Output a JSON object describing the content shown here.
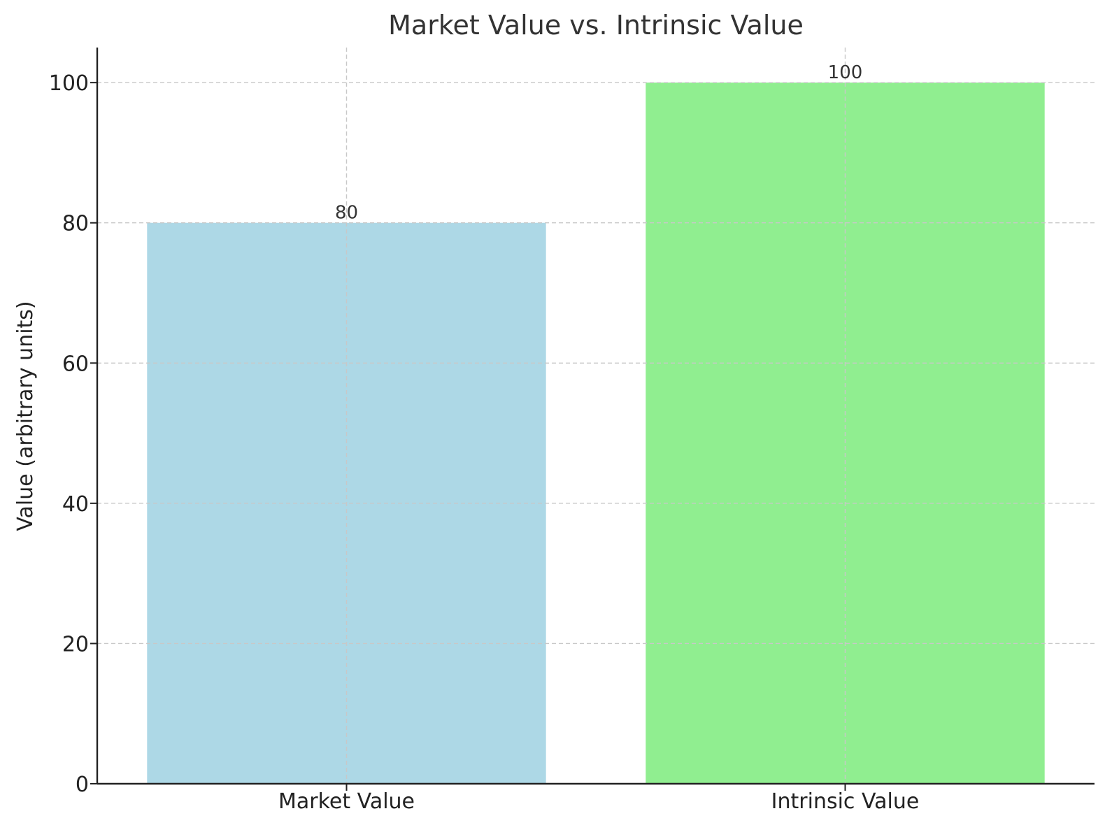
{
  "chart_data": {
    "type": "bar",
    "title": "Market Value vs. Intrinsic Value",
    "xlabel": "",
    "ylabel": "Value (arbitrary units)",
    "categories": [
      "Market Value",
      "Intrinsic Value"
    ],
    "values": [
      80,
      100
    ],
    "data_labels": [
      "80",
      "100"
    ],
    "colors": [
      "#add8e6",
      "#90ee90"
    ],
    "ylim": [
      0,
      105
    ],
    "yticks": [
      0,
      20,
      40,
      60,
      80,
      100
    ],
    "ytick_labels": [
      "0",
      "20",
      "40",
      "60",
      "80",
      "100"
    ],
    "grid": true,
    "legend": "none"
  }
}
